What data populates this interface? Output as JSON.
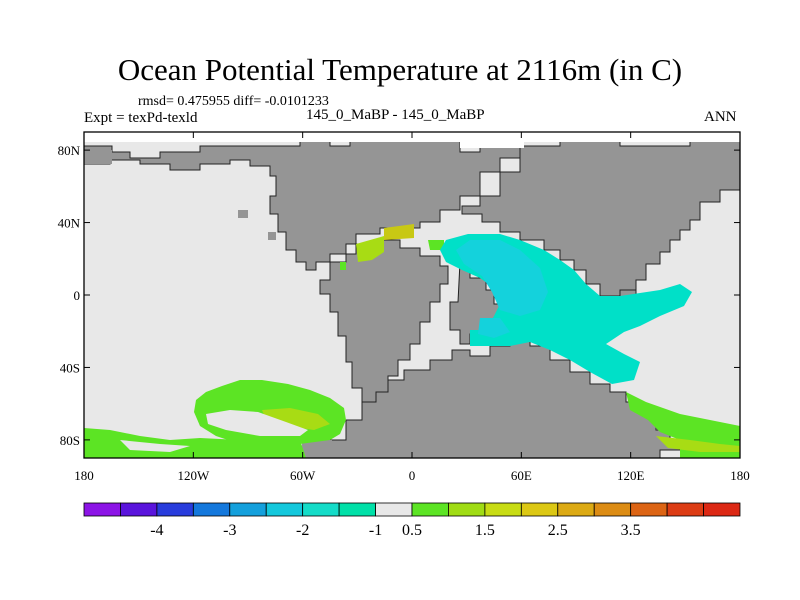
{
  "title": "Ocean Potential Temperature at 2116m (in C)",
  "stats": "rmsd= 0.475955 diff= -0.0101233",
  "experiment": "Expt = texPd-texld",
  "subtitle": "145_0_MaBP - 145_0_MaBP",
  "season": "ANN",
  "map": {
    "projection": "cylindrical equidistant",
    "lon_range": [
      -180,
      180
    ],
    "lat_range": [
      -90,
      90
    ],
    "x_ticks": [
      {
        "lon": -180,
        "label": "180"
      },
      {
        "lon": -120,
        "label": "120W"
      },
      {
        "lon": -60,
        "label": "60W"
      },
      {
        "lon": 0,
        "label": "0"
      },
      {
        "lon": 60,
        "label": "60E"
      },
      {
        "lon": 120,
        "label": "120E"
      },
      {
        "lon": 180,
        "label": "180"
      }
    ],
    "y_ticks": [
      {
        "lat": 80,
        "label": "80N"
      },
      {
        "lat": 40,
        "label": "40N"
      },
      {
        "lat": 0,
        "label": "0"
      },
      {
        "lat": -40,
        "label": "40S"
      },
      {
        "lat": -80,
        "label": "80S"
      }
    ],
    "colors": {
      "land": "#959595",
      "ocean_zero": "#e8e8e8",
      "cyan_dark": "#00e0c8",
      "cyan_light": "#14d2dc",
      "green": "#5ce424",
      "yellowgreen": "#a8dc14",
      "yellow": "#c8c814"
    }
  },
  "colorbar": {
    "colors": [
      "#8c14e6",
      "#5a14dc",
      "#283cdc",
      "#1478dc",
      "#14a0dc",
      "#14c8dc",
      "#14dcc8",
      "#00e0a8",
      "#e8e8e8",
      "#5ce424",
      "#a0dc14",
      "#c8dc14",
      "#dcc814",
      "#dcaa14",
      "#dc8c14",
      "#dc6414",
      "#dc3c14",
      "#dc2814"
    ],
    "labels": [
      {
        "after_box": 2,
        "text": "-4"
      },
      {
        "after_box": 4,
        "text": "-3"
      },
      {
        "after_box": 6,
        "text": "-2"
      },
      {
        "after_box": 8,
        "text": "-1"
      },
      {
        "after_box": 9,
        "text": "0.5"
      },
      {
        "after_box": 11,
        "text": "1.5"
      },
      {
        "after_box": 13,
        "text": "2.5"
      },
      {
        "after_box": 15,
        "text": "3.5"
      }
    ]
  }
}
